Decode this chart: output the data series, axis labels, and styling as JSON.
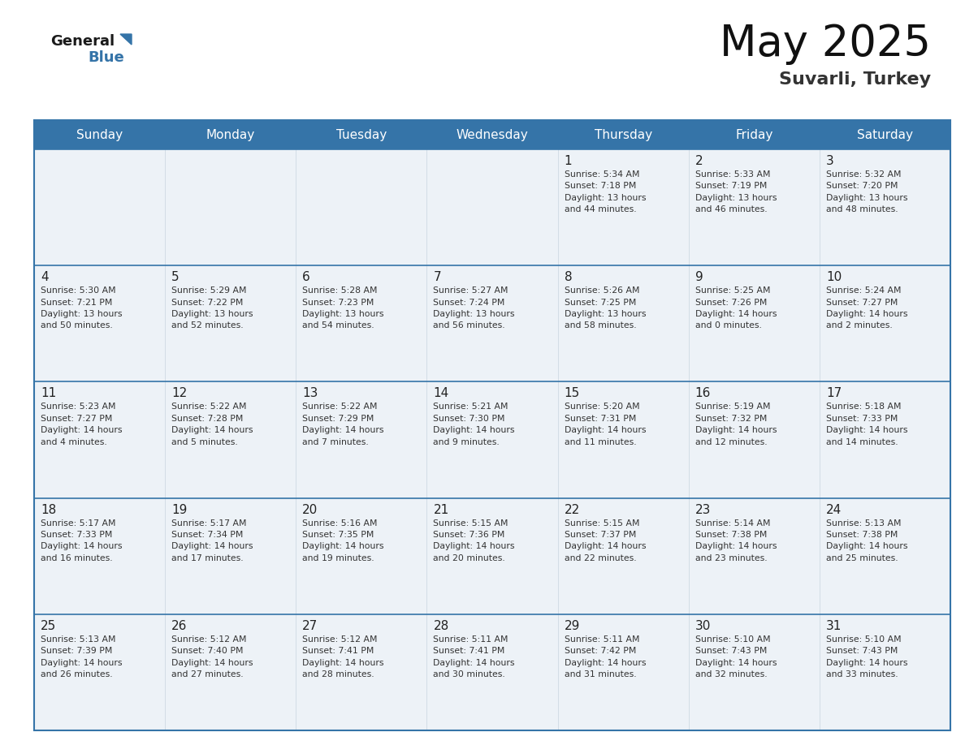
{
  "title": "May 2025",
  "subtitle": "Suvarli, Turkey",
  "header_color": "#3574a8",
  "header_text_color": "#ffffff",
  "cell_bg_color": "#edf2f7",
  "border_color": "#3574a8",
  "day_number_color": "#222222",
  "info_text_color": "#333333",
  "days_of_week": [
    "Sunday",
    "Monday",
    "Tuesday",
    "Wednesday",
    "Thursday",
    "Friday",
    "Saturday"
  ],
  "weeks": [
    [
      {
        "day": null,
        "info": null
      },
      {
        "day": null,
        "info": null
      },
      {
        "day": null,
        "info": null
      },
      {
        "day": null,
        "info": null
      },
      {
        "day": 1,
        "info": "Sunrise: 5:34 AM\nSunset: 7:18 PM\nDaylight: 13 hours\nand 44 minutes."
      },
      {
        "day": 2,
        "info": "Sunrise: 5:33 AM\nSunset: 7:19 PM\nDaylight: 13 hours\nand 46 minutes."
      },
      {
        "day": 3,
        "info": "Sunrise: 5:32 AM\nSunset: 7:20 PM\nDaylight: 13 hours\nand 48 minutes."
      }
    ],
    [
      {
        "day": 4,
        "info": "Sunrise: 5:30 AM\nSunset: 7:21 PM\nDaylight: 13 hours\nand 50 minutes."
      },
      {
        "day": 5,
        "info": "Sunrise: 5:29 AM\nSunset: 7:22 PM\nDaylight: 13 hours\nand 52 minutes."
      },
      {
        "day": 6,
        "info": "Sunrise: 5:28 AM\nSunset: 7:23 PM\nDaylight: 13 hours\nand 54 minutes."
      },
      {
        "day": 7,
        "info": "Sunrise: 5:27 AM\nSunset: 7:24 PM\nDaylight: 13 hours\nand 56 minutes."
      },
      {
        "day": 8,
        "info": "Sunrise: 5:26 AM\nSunset: 7:25 PM\nDaylight: 13 hours\nand 58 minutes."
      },
      {
        "day": 9,
        "info": "Sunrise: 5:25 AM\nSunset: 7:26 PM\nDaylight: 14 hours\nand 0 minutes."
      },
      {
        "day": 10,
        "info": "Sunrise: 5:24 AM\nSunset: 7:27 PM\nDaylight: 14 hours\nand 2 minutes."
      }
    ],
    [
      {
        "day": 11,
        "info": "Sunrise: 5:23 AM\nSunset: 7:27 PM\nDaylight: 14 hours\nand 4 minutes."
      },
      {
        "day": 12,
        "info": "Sunrise: 5:22 AM\nSunset: 7:28 PM\nDaylight: 14 hours\nand 5 minutes."
      },
      {
        "day": 13,
        "info": "Sunrise: 5:22 AM\nSunset: 7:29 PM\nDaylight: 14 hours\nand 7 minutes."
      },
      {
        "day": 14,
        "info": "Sunrise: 5:21 AM\nSunset: 7:30 PM\nDaylight: 14 hours\nand 9 minutes."
      },
      {
        "day": 15,
        "info": "Sunrise: 5:20 AM\nSunset: 7:31 PM\nDaylight: 14 hours\nand 11 minutes."
      },
      {
        "day": 16,
        "info": "Sunrise: 5:19 AM\nSunset: 7:32 PM\nDaylight: 14 hours\nand 12 minutes."
      },
      {
        "day": 17,
        "info": "Sunrise: 5:18 AM\nSunset: 7:33 PM\nDaylight: 14 hours\nand 14 minutes."
      }
    ],
    [
      {
        "day": 18,
        "info": "Sunrise: 5:17 AM\nSunset: 7:33 PM\nDaylight: 14 hours\nand 16 minutes."
      },
      {
        "day": 19,
        "info": "Sunrise: 5:17 AM\nSunset: 7:34 PM\nDaylight: 14 hours\nand 17 minutes."
      },
      {
        "day": 20,
        "info": "Sunrise: 5:16 AM\nSunset: 7:35 PM\nDaylight: 14 hours\nand 19 minutes."
      },
      {
        "day": 21,
        "info": "Sunrise: 5:15 AM\nSunset: 7:36 PM\nDaylight: 14 hours\nand 20 minutes."
      },
      {
        "day": 22,
        "info": "Sunrise: 5:15 AM\nSunset: 7:37 PM\nDaylight: 14 hours\nand 22 minutes."
      },
      {
        "day": 23,
        "info": "Sunrise: 5:14 AM\nSunset: 7:38 PM\nDaylight: 14 hours\nand 23 minutes."
      },
      {
        "day": 24,
        "info": "Sunrise: 5:13 AM\nSunset: 7:38 PM\nDaylight: 14 hours\nand 25 minutes."
      }
    ],
    [
      {
        "day": 25,
        "info": "Sunrise: 5:13 AM\nSunset: 7:39 PM\nDaylight: 14 hours\nand 26 minutes."
      },
      {
        "day": 26,
        "info": "Sunrise: 5:12 AM\nSunset: 7:40 PM\nDaylight: 14 hours\nand 27 minutes."
      },
      {
        "day": 27,
        "info": "Sunrise: 5:12 AM\nSunset: 7:41 PM\nDaylight: 14 hours\nand 28 minutes."
      },
      {
        "day": 28,
        "info": "Sunrise: 5:11 AM\nSunset: 7:41 PM\nDaylight: 14 hours\nand 30 minutes."
      },
      {
        "day": 29,
        "info": "Sunrise: 5:11 AM\nSunset: 7:42 PM\nDaylight: 14 hours\nand 31 minutes."
      },
      {
        "day": 30,
        "info": "Sunrise: 5:10 AM\nSunset: 7:43 PM\nDaylight: 14 hours\nand 32 minutes."
      },
      {
        "day": 31,
        "info": "Sunrise: 5:10 AM\nSunset: 7:43 PM\nDaylight: 14 hours\nand 33 minutes."
      }
    ]
  ]
}
